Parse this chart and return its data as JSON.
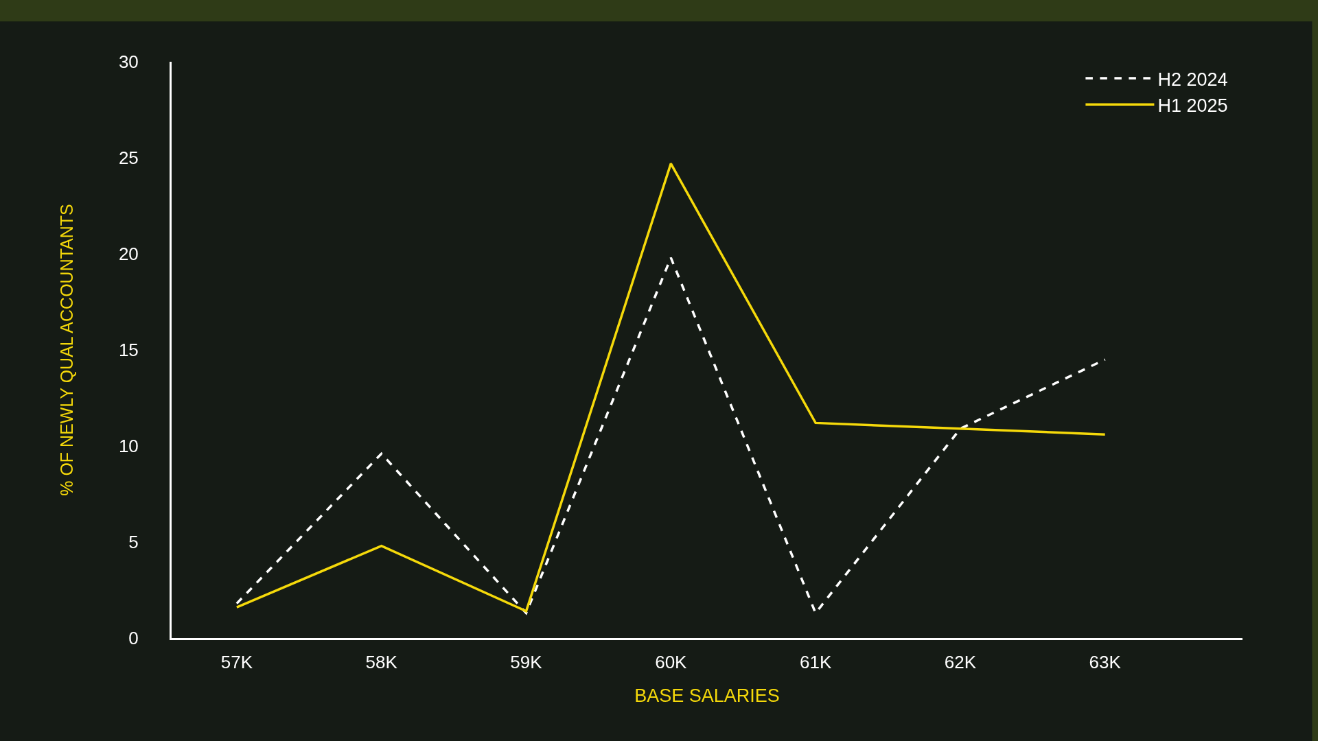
{
  "chart_data": {
    "type": "line",
    "xlabel": "BASE SALARIES",
    "ylabel": "% OF NEWLY QUAL ACCOUNTANTS",
    "categories": [
      "57K",
      "58K",
      "59K",
      "60K",
      "61K",
      "62K",
      "63K"
    ],
    "series": [
      {
        "name": "H2 2024",
        "color": "#ffffff",
        "line_style": "dashed",
        "values": [
          1.8,
          9.6,
          1.3,
          19.8,
          1.3,
          10.9,
          14.5
        ]
      },
      {
        "name": "H1 2025",
        "color": "#f5d90a",
        "line_style": "solid",
        "values": [
          1.6,
          4.8,
          1.4,
          24.7,
          11.2,
          10.9,
          10.6
        ]
      }
    ],
    "ylim": [
      0,
      30
    ],
    "yticks": [
      0,
      5,
      10,
      15,
      20,
      25,
      30
    ],
    "grid": false,
    "legend": "top right",
    "marker": "none"
  }
}
